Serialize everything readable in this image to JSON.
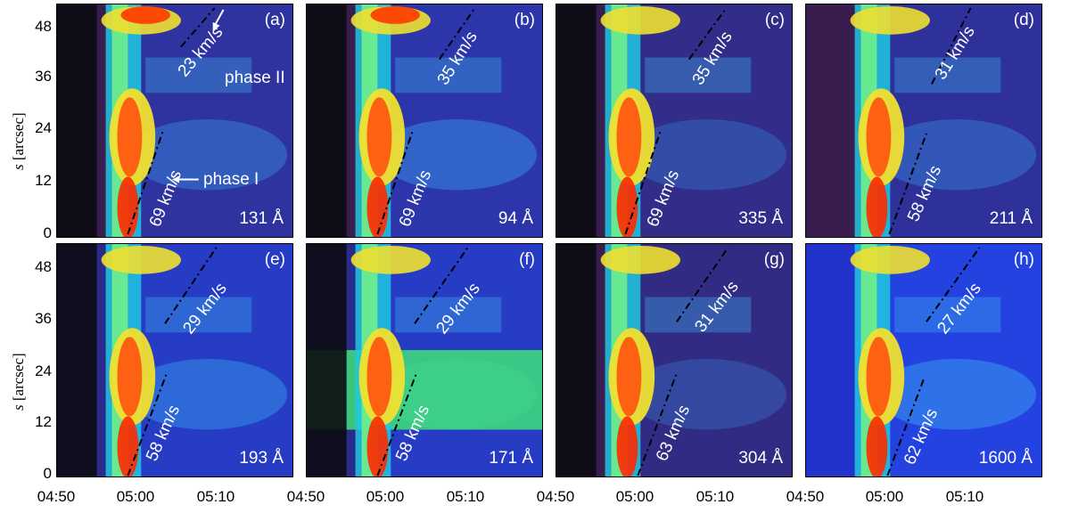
{
  "figure": {
    "y_axis_label_symbol": "s",
    "y_axis_label_unit": "[arcsec]",
    "y_ticks": [
      "0",
      "12",
      "24",
      "36",
      "48"
    ],
    "x_ticks": [
      "04:50",
      "05:00",
      "05:10"
    ],
    "phase_labels": {
      "phase1": "phase I",
      "phase2": "phase II"
    }
  },
  "panels": [
    {
      "id": "a",
      "label": "(a)",
      "wavelength": "131 Å",
      "speed_upper": "23 km/s",
      "speed_lower": "69 km/s"
    },
    {
      "id": "b",
      "label": "(b)",
      "wavelength": "94 Å",
      "speed_upper": "35 km/s",
      "speed_lower": "69 km/s"
    },
    {
      "id": "c",
      "label": "(c)",
      "wavelength": "335 Å",
      "speed_upper": "35 km/s",
      "speed_lower": "69 km/s"
    },
    {
      "id": "d",
      "label": "(d)",
      "wavelength": "211 Å",
      "speed_upper": "31 km/s",
      "speed_lower": "58 km/s"
    },
    {
      "id": "e",
      "label": "(e)",
      "wavelength": "193 Å",
      "speed_upper": "29 km/s",
      "speed_lower": "58 km/s"
    },
    {
      "id": "f",
      "label": "(f)",
      "wavelength": "171 Å",
      "speed_upper": "29 km/s",
      "speed_lower": "58 km/s"
    },
    {
      "id": "g",
      "label": "(g)",
      "wavelength": "304 Å",
      "speed_upper": "31 km/s",
      "speed_lower": "63 km/s"
    },
    {
      "id": "h",
      "label": "(h)",
      "wavelength": "1600 Å",
      "speed_upper": "27 km/s",
      "speed_lower": "62 km/s"
    }
  ],
  "colors": {
    "background": "#3a1a4a",
    "low": "#1a3cff",
    "mid": "#2fe0e0",
    "high": "#ff2a00",
    "annotation": "#ffffff"
  }
}
